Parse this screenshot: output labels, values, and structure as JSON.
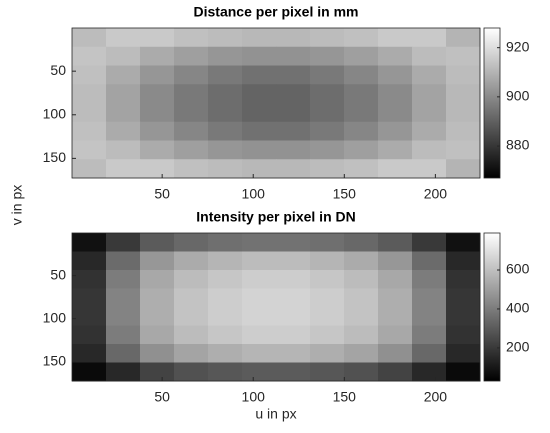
{
  "chart_data": [
    {
      "type": "heatmap",
      "title": "Distance per pixel in mm",
      "ylabel": "v in px",
      "colormap": "gray",
      "xlim": [
        0.5,
        224.5
      ],
      "ylim": [
        0.5,
        172.5
      ],
      "xticks": [
        50,
        100,
        150,
        200
      ],
      "yticks": [
        50,
        100,
        150
      ],
      "clim": [
        867,
        928
      ],
      "cticks": [
        880,
        900,
        920
      ],
      "z": [
        [
          912,
          915,
          915,
          913,
          912,
          911,
          911,
          912,
          913,
          915,
          915,
          910
        ],
        [
          914,
          912,
          908,
          905,
          903,
          902,
          902,
          903,
          905,
          908,
          912,
          913
        ],
        [
          913,
          908,
          903,
          899,
          896,
          894,
          894,
          896,
          899,
          903,
          908,
          912
        ],
        [
          912,
          906,
          900,
          896,
          893,
          891,
          891,
          893,
          896,
          900,
          906,
          911
        ],
        [
          912,
          906,
          900,
          896,
          893,
          891,
          891,
          893,
          896,
          900,
          906,
          911
        ],
        [
          913,
          908,
          903,
          899,
          896,
          894,
          894,
          896,
          899,
          903,
          908,
          912
        ],
        [
          914,
          912,
          908,
          905,
          903,
          902,
          902,
          903,
          905,
          908,
          912,
          913
        ],
        [
          912,
          915,
          915,
          913,
          912,
          911,
          911,
          912,
          913,
          915,
          915,
          910
        ]
      ]
    },
    {
      "type": "heatmap",
      "title": "Intensity per pixel in DN",
      "xlabel": "u in px",
      "colormap": "gray",
      "xlim": [
        0.5,
        224.5
      ],
      "ylim": [
        0.5,
        172.5
      ],
      "xticks": [
        50,
        100,
        150,
        200
      ],
      "yticks": [
        50,
        100,
        150
      ],
      "clim": [
        30,
        790
      ],
      "cticks": [
        200,
        400,
        600
      ],
      "z": [
        [
          80,
          200,
          300,
          340,
          360,
          370,
          370,
          360,
          340,
          300,
          200,
          80
        ],
        [
          150,
          350,
          480,
          540,
          570,
          590,
          590,
          570,
          540,
          480,
          350,
          150
        ],
        [
          180,
          400,
          530,
          590,
          620,
          640,
          640,
          620,
          590,
          530,
          400,
          180
        ],
        [
          190,
          420,
          550,
          610,
          640,
          660,
          660,
          640,
          610,
          550,
          420,
          190
        ],
        [
          190,
          420,
          550,
          610,
          640,
          660,
          660,
          640,
          610,
          550,
          420,
          190
        ],
        [
          180,
          400,
          530,
          590,
          620,
          640,
          640,
          620,
          590,
          530,
          400,
          180
        ],
        [
          150,
          340,
          460,
          520,
          550,
          570,
          570,
          550,
          520,
          460,
          340,
          150
        ],
        [
          60,
          150,
          230,
          270,
          290,
          300,
          300,
          290,
          270,
          230,
          150,
          60
        ]
      ]
    }
  ]
}
